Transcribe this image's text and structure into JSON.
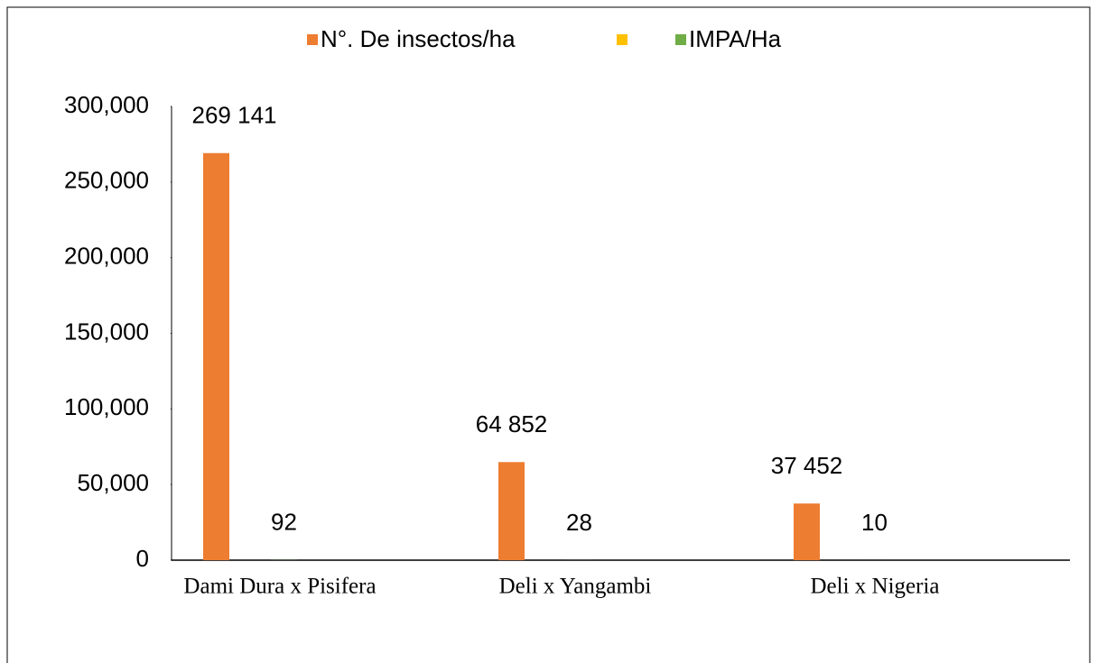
{
  "chart_data": {
    "type": "bar",
    "categories": [
      "Dami Dura x Pisifera",
      "Deli x Yangambi",
      "Deli x Nigeria"
    ],
    "series": [
      {
        "name": "N°. De insectos/ha",
        "color": "#ed7d31",
        "values": [
          269141,
          64852,
          37452
        ],
        "value_labels": [
          "269 141",
          "64 852",
          "37 452"
        ]
      },
      {
        "color": "#ffc000",
        "values": [
          null,
          null,
          null
        ]
      },
      {
        "name": "IMPA/Ha",
        "color": "#70ad47",
        "values": [
          92,
          28,
          10
        ]
      }
    ],
    "ylim": [
      0,
      300000
    ],
    "yticks": [
      0,
      {
        "value": 50000,
        "label": "50,000"
      },
      {
        "value": 100000,
        "label": "100,000"
      },
      {
        "value": 150000,
        "label": "150,000"
      },
      {
        "value": 200000,
        "label": "200,000"
      },
      {
        "value": 250000,
        "label": "250,000"
      },
      {
        "value": 300000,
        "label": "300,000"
      }
    ],
    "legend": "top"
  }
}
